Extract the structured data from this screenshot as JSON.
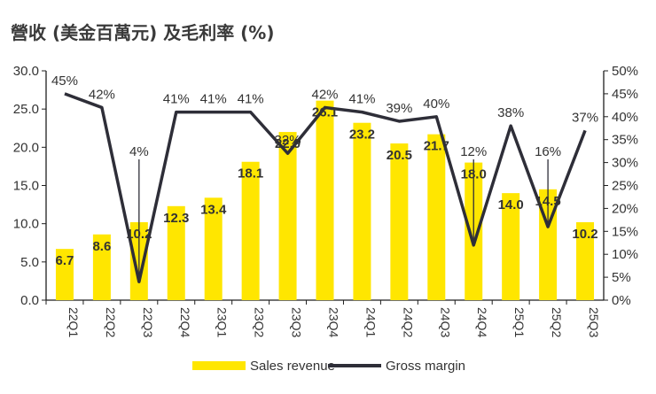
{
  "chart_data": {
    "type": "bar",
    "title": "營收 (美金百萬元) 及毛利率 (%)",
    "categories": [
      "22Q1",
      "22Q2",
      "22Q3",
      "22Q4",
      "23Q1",
      "23Q2",
      "23Q3",
      "23Q4",
      "24Q1",
      "24Q2",
      "24Q3",
      "24Q4",
      "25Q1",
      "25Q2",
      "25Q3"
    ],
    "series": [
      {
        "name": "Sales revenue",
        "type": "bar",
        "axis": "left",
        "color": "#FFE600",
        "values": [
          6.7,
          8.6,
          10.2,
          12.3,
          13.4,
          18.1,
          22.0,
          26.1,
          23.2,
          20.5,
          21.7,
          18.0,
          14.0,
          14.5,
          10.2
        ],
        "labels": [
          "6.7",
          "8.6",
          "10.2",
          "12.3",
          "13.4",
          "18.1",
          "22.0",
          "26.1",
          "23.2",
          "20.5",
          "21.7",
          "18.0",
          "14.0",
          "14.5",
          "10.2"
        ]
      },
      {
        "name": "Gross margin",
        "type": "line",
        "axis": "right",
        "color": "#2E2E38",
        "values": [
          45,
          42,
          4,
          41,
          41,
          41,
          32,
          42,
          41,
          39,
          40,
          12,
          38,
          16,
          37
        ],
        "labels": [
          "45%",
          "42%",
          "4%",
          "41%",
          "41%",
          "41%",
          "32%",
          "42%",
          "41%",
          "39%",
          "40%",
          "12%",
          "38%",
          "16%",
          "37%"
        ]
      }
    ],
    "y_left": {
      "range": [
        0,
        30
      ],
      "ticks": [
        "0.0",
        "5.0",
        "10.0",
        "15.0",
        "20.0",
        "25.0",
        "30.0"
      ]
    },
    "y_right": {
      "range": [
        0,
        50
      ],
      "ticks": [
        "0%",
        "5%",
        "10%",
        "15%",
        "20%",
        "25%",
        "30%",
        "35%",
        "40%",
        "45%",
        "50%"
      ]
    },
    "legend": {
      "position": "bottom",
      "entries": [
        "Sales revenue",
        "Gross margin"
      ]
    }
  }
}
